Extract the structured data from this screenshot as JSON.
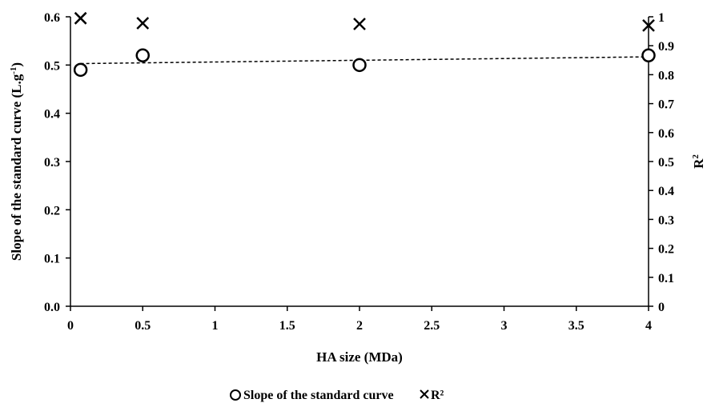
{
  "chart_data": {
    "type": "scatter",
    "title": "",
    "xlabel": "HA size (MDa)",
    "ylabel": "Slope of the standard curve (L.g",
    "ylabel_sup": "-1",
    "ylabel_end": ")",
    "y2label": "R",
    "y2label_sup": "2",
    "xlim": [
      0,
      4
    ],
    "ylim": [
      0,
      0.6
    ],
    "y2lim": [
      0,
      1
    ],
    "x_ticks": [
      "0",
      "0.5",
      "1",
      "1.5",
      "2",
      "2.5",
      "3",
      "3.5",
      "4"
    ],
    "y_ticks": [
      "0.0",
      "0.1",
      "0.2",
      "0.3",
      "0.4",
      "0.5",
      "0.6"
    ],
    "y2_ticks": [
      "0",
      "0.1",
      "0.2",
      "0.3",
      "0.4",
      "0.5",
      "0.6",
      "0.7",
      "0.8",
      "0.9",
      "1"
    ],
    "grid": false,
    "legend_position": "bottom",
    "series": [
      {
        "name": "Slope of the standard curve",
        "axis": "left",
        "marker": "circle",
        "x": [
          0.07,
          0.5,
          2,
          4
        ],
        "y": [
          0.49,
          0.52,
          0.5,
          0.52
        ]
      },
      {
        "name": "R²",
        "axis": "right",
        "marker": "cross",
        "x": [
          0.07,
          0.5,
          2,
          4
        ],
        "y": [
          0.995,
          0.978,
          0.975,
          0.97
        ]
      }
    ],
    "trendline": {
      "series": "Slope of the standard curve",
      "style": "dashed",
      "y_start": 0.503,
      "y_end": 0.517
    }
  }
}
